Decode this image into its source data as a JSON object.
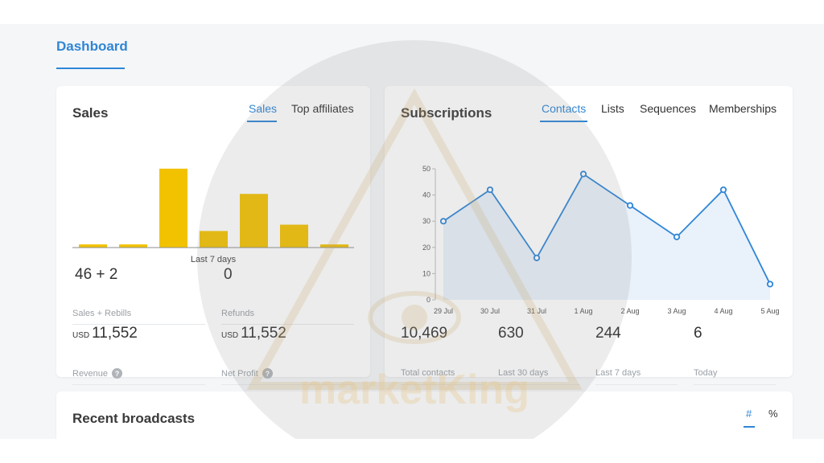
{
  "page": {
    "title": "Dashboard"
  },
  "sales": {
    "title": "Sales",
    "tabs": [
      {
        "label": "Sales",
        "active": true
      },
      {
        "label": "Top affiliates",
        "active": false
      }
    ],
    "chart_caption": "Last 7 days",
    "stats": [
      {
        "currency": "",
        "value": "46 + 2",
        "label": "Sales + Rebills",
        "help": false
      },
      {
        "currency": "",
        "value": "0",
        "label": "Refunds",
        "help": false
      },
      {
        "currency": "USD",
        "value": "11,552",
        "label": "Revenue",
        "help": true
      },
      {
        "currency": "USD",
        "value": "11,552",
        "label": "Net Profit",
        "help": true
      }
    ]
  },
  "subscriptions": {
    "title": "Subscriptions",
    "tabs": [
      {
        "label": "Contacts",
        "active": true
      },
      {
        "label": "Lists",
        "active": false
      },
      {
        "label": "Sequences",
        "active": false
      },
      {
        "label": "Memberships",
        "active": false
      }
    ],
    "stats": [
      {
        "value": "10,469",
        "label": "Total contacts"
      },
      {
        "value": "630",
        "label": "Last 30 days"
      },
      {
        "value": "244",
        "label": "Last 7 days"
      },
      {
        "value": "6",
        "label": "Today"
      }
    ]
  },
  "broadcasts": {
    "title": "Recent broadcasts",
    "tabs": [
      {
        "label": "#",
        "active": true
      },
      {
        "label": "%",
        "active": false
      }
    ]
  },
  "watermark": {
    "text": "marketKing"
  },
  "help_icon_glyph": "?",
  "colors": {
    "accent": "#2f86d6",
    "bar": "#f2c200",
    "area": "#e7f0fb"
  },
  "chart_data": [
    {
      "type": "bar",
      "categories": [
        "",
        "",
        "",
        "",
        "",
        "",
        ""
      ],
      "values": [
        0.4,
        0.4,
        10,
        2.1,
        6.8,
        2.9,
        0.4
      ],
      "xlabel": "Last 7 days",
      "ylabel": "",
      "ylim": [
        0,
        11
      ]
    },
    {
      "type": "area",
      "x": [
        "29 Jul",
        "30 Jul",
        "31 Jul",
        "1 Aug",
        "2 Aug",
        "3 Aug",
        "4 Aug",
        "5 Aug"
      ],
      "series": [
        {
          "values": [
            30,
            42,
            16,
            48,
            36,
            24,
            42,
            6
          ]
        }
      ],
      "yticks": [
        0,
        10,
        20,
        30,
        40,
        50
      ],
      "ylim": [
        0,
        50
      ],
      "xlabel": "",
      "ylabel": ""
    }
  ]
}
